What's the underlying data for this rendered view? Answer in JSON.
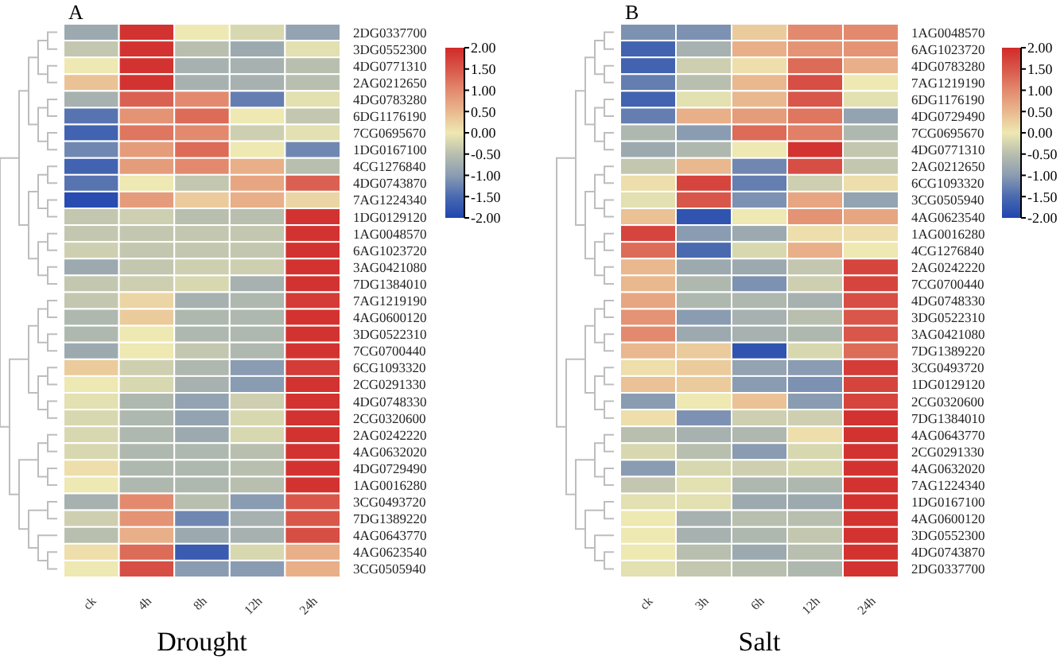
{
  "chart_data": [
    {
      "type": "heatmap",
      "title": "A",
      "xlabel": "Drought",
      "categories": [
        "ck",
        "4h",
        "8h",
        "12h",
        "24h"
      ],
      "y_categories": [
        "2DG0337700",
        "3DG0552300",
        "4DG0771310",
        "2AG0212650",
        "4DG0783280",
        "6DG1176190",
        "7CG0695670",
        "1DG0167100",
        "4CG1276840",
        "4DG0743870",
        "7AG1224340",
        "1DG0129120",
        "1AG0048570",
        "6AG1023720",
        "3AG0421080",
        "7DG1384010",
        "7AG1219190",
        "4AG0600120",
        "3DG0522310",
        "7CG0700440",
        "6CG1093320",
        "2CG0291330",
        "4DG0748330",
        "2CG0320600",
        "2AG0242220",
        "4AG0632020",
        "4DG0729490",
        "1AG0016280",
        "3CG0493720",
        "7DG1389220",
        "4AG0643770",
        "4AG0623540",
        "3CG0505940"
      ],
      "cells": [
        [
          -0.8,
          1.9,
          0.0,
          -0.2,
          -0.9
        ],
        [
          -0.4,
          1.9,
          -0.5,
          -0.8,
          -0.1
        ],
        [
          0.0,
          1.9,
          -0.7,
          -0.7,
          -0.5
        ],
        [
          0.4,
          1.9,
          -0.7,
          -0.7,
          -0.5
        ],
        [
          -0.7,
          1.4,
          1.0,
          -1.3,
          -0.1
        ],
        [
          -1.4,
          0.9,
          1.3,
          0.0,
          -0.4
        ],
        [
          -1.6,
          1.2,
          1.0,
          -0.3,
          -0.1
        ],
        [
          -1.2,
          0.8,
          1.3,
          0.0,
          -1.2
        ],
        [
          -1.6,
          0.8,
          1.0,
          0.6,
          -0.5
        ],
        [
          -1.4,
          0.0,
          -0.4,
          0.7,
          1.4
        ],
        [
          -1.9,
          0.8,
          0.3,
          0.6,
          0.2
        ],
        [
          -0.4,
          -0.3,
          -0.5,
          -0.5,
          1.9
        ],
        [
          -0.4,
          -0.4,
          -0.4,
          -0.4,
          1.9
        ],
        [
          -0.3,
          -0.4,
          -0.4,
          -0.4,
          1.9
        ],
        [
          -0.8,
          -0.4,
          -0.3,
          -0.3,
          1.9
        ],
        [
          -0.4,
          -0.3,
          -0.2,
          -0.7,
          1.9
        ],
        [
          -0.4,
          0.2,
          -0.7,
          -0.6,
          1.8
        ],
        [
          -0.6,
          0.3,
          -0.6,
          -0.6,
          1.9
        ],
        [
          -0.6,
          0.0,
          -0.6,
          -0.6,
          1.9
        ],
        [
          -0.8,
          0.0,
          -0.4,
          -0.6,
          1.9
        ],
        [
          0.3,
          -0.3,
          -0.6,
          -1.0,
          1.8
        ],
        [
          0.0,
          -0.2,
          -0.7,
          -1.0,
          1.9
        ],
        [
          -0.1,
          -0.6,
          -0.9,
          -0.3,
          1.9
        ],
        [
          -0.2,
          -0.6,
          -0.9,
          -0.2,
          1.9
        ],
        [
          -0.2,
          -0.6,
          -0.8,
          -0.2,
          1.9
        ],
        [
          -0.2,
          -0.6,
          -0.6,
          -0.5,
          1.9
        ],
        [
          0.1,
          -0.6,
          -0.6,
          -0.5,
          1.9
        ],
        [
          0.0,
          -0.6,
          -0.6,
          -0.5,
          1.9
        ],
        [
          -0.7,
          1.0,
          -0.5,
          -1.0,
          1.5
        ],
        [
          -0.3,
          0.9,
          -1.2,
          -0.7,
          1.5
        ],
        [
          -0.5,
          0.6,
          -0.8,
          -0.7,
          1.6
        ],
        [
          0.1,
          1.3,
          -1.7,
          -0.2,
          0.6
        ],
        [
          0.0,
          1.6,
          -1.0,
          -1.0,
          0.6
        ]
      ],
      "clim": [
        -2,
        2
      ],
      "cticks": [
        {
          "value": 2,
          "label": "2.00"
        },
        {
          "value": 1.5,
          "label": "1.50"
        },
        {
          "value": 1,
          "label": "1.00"
        },
        {
          "value": 0.5,
          "label": "0.50"
        },
        {
          "value": 0,
          "label": "0.00"
        },
        {
          "value": -0.5,
          "label": "-0.50"
        },
        {
          "value": -1,
          "label": "-1.00"
        },
        {
          "value": -1.5,
          "label": "-1.50"
        },
        {
          "value": -2,
          "label": "-2.00"
        }
      ]
    },
    {
      "type": "heatmap",
      "title": "B",
      "xlabel": "Salt",
      "categories": [
        "ck",
        "3h",
        "6h",
        "12h",
        "24h"
      ],
      "y_categories": [
        "1AG0048570",
        "6AG1023720",
        "4DG0783280",
        "7AG1219190",
        "6DG1176190",
        "4DG0729490",
        "7CG0695670",
        "4DG0771310",
        "2AG0212650",
        "6CG1093320",
        "3CG0505940",
        "4AG0623540",
        "1AG0016280",
        "4CG1276840",
        "2AG0242220",
        "7CG0700440",
        "4DG0748330",
        "3DG0522310",
        "3AG0421080",
        "7DG1389220",
        "3CG0493720",
        "1DG0129120",
        "2CG0320600",
        "7DG1384010",
        "4AG0643770",
        "2CG0291330",
        "4AG0632020",
        "7AG1224340",
        "1DG0167100",
        "4AG0600120",
        "3DG0552300",
        "4DG0743870",
        "2DG0337700"
      ],
      "cells": [
        [
          -1.1,
          -1.1,
          0.3,
          1.0,
          1.0
        ],
        [
          -1.6,
          -0.7,
          0.6,
          0.9,
          0.9
        ],
        [
          -1.6,
          -0.3,
          0.1,
          1.3,
          0.6
        ],
        [
          -1.3,
          -0.5,
          0.5,
          1.6,
          0.0
        ],
        [
          -1.6,
          -0.1,
          0.5,
          1.5,
          -0.1
        ],
        [
          -1.3,
          0.6,
          0.8,
          1.2,
          -0.9
        ],
        [
          -0.6,
          -1.0,
          1.3,
          1.1,
          -0.6
        ],
        [
          -0.8,
          -0.6,
          0.0,
          1.9,
          -0.4
        ],
        [
          -0.4,
          0.5,
          -1.2,
          1.6,
          -0.4
        ],
        [
          0.1,
          1.7,
          -1.3,
          -0.3,
          0.1
        ],
        [
          -0.1,
          1.5,
          -1.1,
          0.7,
          -0.9
        ],
        [
          0.4,
          -1.8,
          0.0,
          0.9,
          0.7
        ],
        [
          1.7,
          -1.0,
          -0.8,
          0.1,
          0.1
        ],
        [
          1.3,
          -1.5,
          -0.2,
          0.6,
          0.0
        ],
        [
          0.5,
          -0.8,
          -0.8,
          -0.4,
          1.7
        ],
        [
          0.5,
          -0.6,
          -1.1,
          -0.3,
          1.7
        ],
        [
          0.7,
          -0.6,
          -0.6,
          -0.7,
          1.6
        ],
        [
          0.9,
          -1.0,
          -0.7,
          -0.5,
          1.5
        ],
        [
          1.0,
          -0.8,
          -0.7,
          -0.6,
          1.5
        ],
        [
          0.5,
          0.3,
          -1.8,
          -0.2,
          1.3
        ],
        [
          0.1,
          0.3,
          -0.9,
          -1.0,
          1.8
        ],
        [
          0.4,
          0.3,
          -1.0,
          -1.1,
          1.7
        ],
        [
          -1.0,
          0.0,
          0.4,
          -1.0,
          1.7
        ],
        [
          0.1,
          -1.1,
          -0.3,
          -0.3,
          1.9
        ],
        [
          -0.5,
          -0.7,
          -0.6,
          0.1,
          1.9
        ],
        [
          -0.2,
          -0.5,
          -1.0,
          -0.2,
          1.9
        ],
        [
          -1.0,
          -0.2,
          -0.3,
          -0.2,
          1.9
        ],
        [
          -0.4,
          -0.1,
          -0.6,
          -0.6,
          1.9
        ],
        [
          -0.1,
          -0.1,
          -0.8,
          -0.8,
          1.9
        ],
        [
          0.0,
          -0.7,
          -0.5,
          -0.5,
          1.9
        ],
        [
          0.0,
          -0.7,
          -0.6,
          -0.4,
          1.9
        ],
        [
          0.0,
          -0.5,
          -0.8,
          -0.5,
          1.9
        ],
        [
          -0.1,
          -0.4,
          -0.5,
          -0.6,
          1.9
        ]
      ],
      "clim": [
        -2,
        2
      ],
      "cticks": [
        {
          "value": 2,
          "label": "2.00"
        },
        {
          "value": 1.5,
          "label": "1.50"
        },
        {
          "value": 1,
          "label": "1.00"
        },
        {
          "value": 0.5,
          "label": "0.50"
        },
        {
          "value": 0,
          "label": "0.00"
        },
        {
          "value": -0.5,
          "label": "-0.50"
        },
        {
          "value": -1,
          "label": "-1.00"
        },
        {
          "value": -1.5,
          "label": "-1.50"
        },
        {
          "value": -2,
          "label": "-2.00"
        }
      ]
    }
  ]
}
